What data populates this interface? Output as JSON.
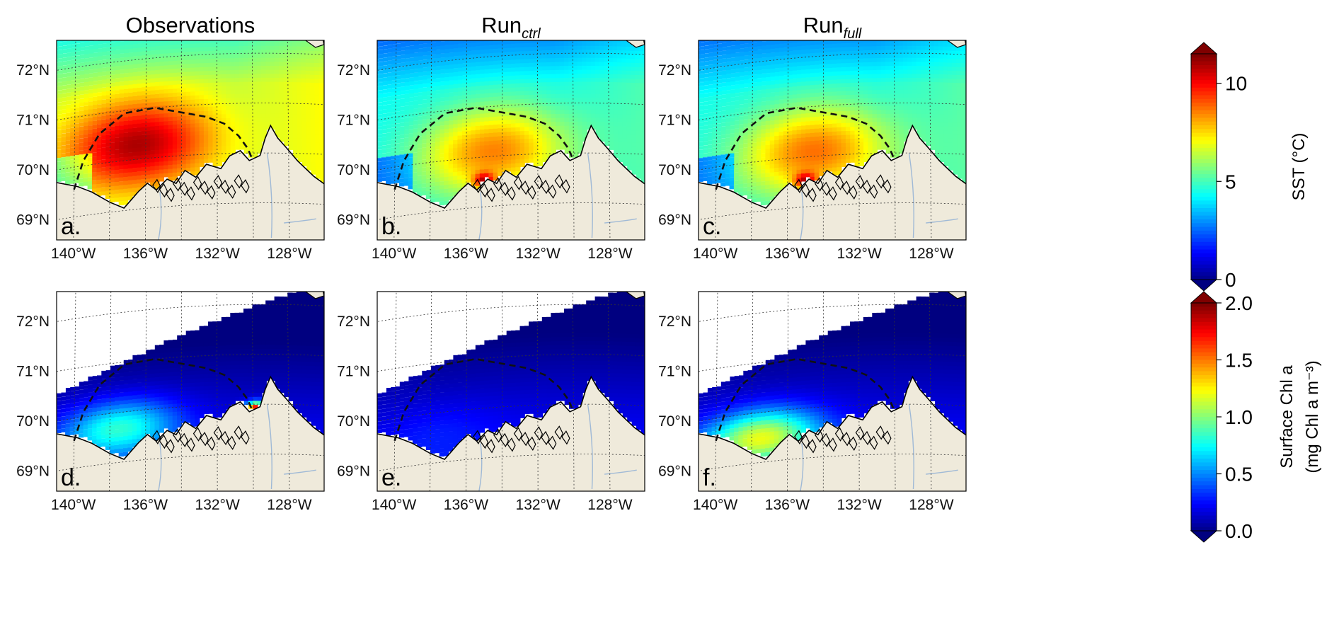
{
  "columns": [
    {
      "title": "Observations",
      "title_sub": ""
    },
    {
      "title": "Run",
      "title_sub": "ctrl"
    },
    {
      "title": "Run",
      "title_sub": "full"
    }
  ],
  "rows": [
    {
      "variable": "SST",
      "colorbar": {
        "label": "SST (°C)",
        "label_line2": "",
        "min": 0,
        "max": 11.5,
        "ticks": [
          {
            "value": 0,
            "label": "0"
          },
          {
            "value": 5,
            "label": "5"
          },
          {
            "value": 10,
            "label": "10"
          }
        ]
      },
      "panels": [
        {
          "label": "a.",
          "dataset": "Observations",
          "hot_lon": -136.5,
          "hot_lat": 70.3,
          "peak": 11.0,
          "background": 6.4,
          "coastal_patch": null
        },
        {
          "label": "b.",
          "dataset": "Run ctrl",
          "hot_lon": -134.5,
          "hot_lat": 70.1,
          "peak": 8.6,
          "background": 4.4,
          "coastal_patch": {
            "lon": -135.0,
            "lat": 69.55,
            "value": 11.0
          }
        },
        {
          "label": "c.",
          "dataset": "Run full",
          "hot_lon": -134.5,
          "hot_lat": 70.1,
          "peak": 8.8,
          "background": 4.5,
          "coastal_patch": {
            "lon": -135.0,
            "lat": 69.55,
            "value": 11.0
          }
        }
      ]
    },
    {
      "variable": "Chl",
      "colorbar": {
        "label": "Surface Chl a",
        "label_line2": "(mg Chl a m⁻³)",
        "min": 0,
        "max": 2.0,
        "ticks": [
          {
            "value": 0.0,
            "label": "0.0"
          },
          {
            "value": 0.5,
            "label": "0.5"
          },
          {
            "value": 1.0,
            "label": "1.0"
          },
          {
            "value": 1.5,
            "label": "1.5"
          },
          {
            "value": 2.0,
            "label": "2.0"
          }
        ]
      },
      "panels": [
        {
          "label": "d.",
          "dataset": "Observations",
          "hot_lon": -137.5,
          "hot_lat": 69.7,
          "peak": 0.85,
          "background": 0.2,
          "coastal_patch": {
            "lon": -129.8,
            "lat": 69.9,
            "value": 2.0
          }
        },
        {
          "label": "e.",
          "dataset": "Run ctrl",
          "hot_lon": -137.5,
          "hot_lat": 69.7,
          "peak": 0.3,
          "background": 0.22,
          "coastal_patch": null
        },
        {
          "label": "f.",
          "dataset": "Run full",
          "hot_lon": -137.5,
          "hot_lat": 69.5,
          "peak": 1.2,
          "background": 0.22,
          "coastal_patch": null
        }
      ]
    }
  ],
  "axes": {
    "lat_ticks": [
      {
        "value": 72,
        "label": "72°N"
      },
      {
        "value": 71,
        "label": "71°N"
      },
      {
        "value": 70,
        "label": "70°N"
      },
      {
        "value": 69,
        "label": "69°N"
      }
    ],
    "lon_ticks": [
      {
        "value": -140,
        "label": "140°W"
      },
      {
        "value": -136,
        "label": "136°W"
      },
      {
        "value": -132,
        "label": "132°W"
      },
      {
        "value": -128,
        "label": "128°W"
      }
    ],
    "lon_range": [
      -141,
      -126
    ],
    "lat_range": [
      68.3,
      72.3
    ]
  },
  "colors": {
    "land": "#efeadb",
    "coast": "#000000",
    "river": "#9fb9d6",
    "grid": "#333333",
    "region_outline": "#111111",
    "no_data": "#ffffff"
  },
  "colormap": "jet"
}
